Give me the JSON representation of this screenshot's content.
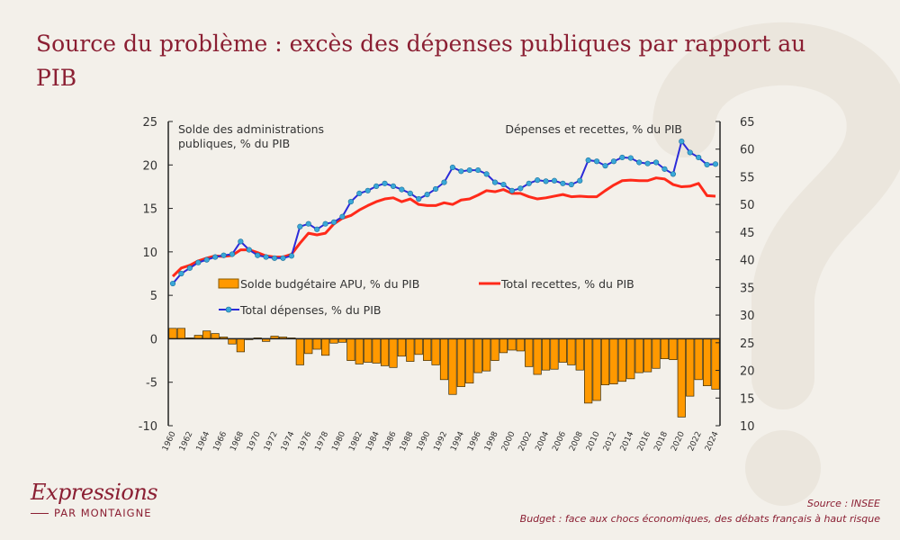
{
  "title": "Source du problème : excès des dépenses publiques par rapport au PIB",
  "logo": {
    "main": "Expressions",
    "sub": "PAR MONTAIGNE"
  },
  "footer": {
    "source": "Source : INSEE",
    "publication": "Budget : face aux chocs économiques, des débats français à haut risque"
  },
  "chart_data": {
    "type": "bar+line",
    "left_axis_label": "Solde des administrations publiques, % du PIB",
    "right_axis_label": "Dépenses et recettes, % du PIB",
    "ylim_left": [
      -10,
      25
    ],
    "yticks_left": [
      -10,
      -5,
      0,
      5,
      10,
      15,
      20,
      25
    ],
    "ylim_right": [
      10,
      65
    ],
    "yticks_right": [
      10,
      15,
      20,
      25,
      30,
      35,
      40,
      45,
      50,
      55,
      60,
      65
    ],
    "x": [
      1960,
      1961,
      1962,
      1963,
      1964,
      1965,
      1966,
      1967,
      1968,
      1969,
      1970,
      1971,
      1972,
      1973,
      1974,
      1975,
      1976,
      1977,
      1978,
      1979,
      1980,
      1981,
      1982,
      1983,
      1984,
      1985,
      1986,
      1987,
      1988,
      1989,
      1990,
      1991,
      1992,
      1993,
      1994,
      1995,
      1996,
      1997,
      1998,
      1999,
      2000,
      2001,
      2002,
      2003,
      2004,
      2005,
      2006,
      2007,
      2008,
      2009,
      2010,
      2011,
      2012,
      2013,
      2014,
      2015,
      2016,
      2017,
      2018,
      2019,
      2020,
      2021,
      2022,
      2023,
      2024
    ],
    "xticks": [
      "1960",
      "1962",
      "1964",
      "1966",
      "1968",
      "1970",
      "1972",
      "1974",
      "1976",
      "1978",
      "1980",
      "1982",
      "1984",
      "1986",
      "1988",
      "1990",
      "1992",
      "1994",
      "1996",
      "1998",
      "2000",
      "2002",
      "2004",
      "2006",
      "2008",
      "2010",
      "2012",
      "2014",
      "2016",
      "2018",
      "2020",
      "2022",
      "2024"
    ],
    "legend_placement": "center-left",
    "grid": false,
    "series": [
      {
        "name": "Solde budgétaire APU, % du PIB",
        "type": "bar",
        "axis": "left",
        "color": "#ff9900",
        "values": [
          1.2,
          1.2,
          0.1,
          0.4,
          0.9,
          0.6,
          0.2,
          -0.6,
          -1.5,
          -0.1,
          0.1,
          -0.3,
          0.3,
          0.2,
          0.1,
          -3.0,
          -1.7,
          -1.2,
          -1.9,
          -0.5,
          -0.4,
          -2.5,
          -2.9,
          -2.7,
          -2.8,
          -3.1,
          -3.3,
          -2.0,
          -2.6,
          -1.8,
          -2.5,
          -3.0,
          -4.7,
          -6.4,
          -5.5,
          -5.1,
          -3.9,
          -3.7,
          -2.5,
          -1.6,
          -1.3,
          -1.4,
          -3.2,
          -4.1,
          -3.6,
          -3.5,
          -2.7,
          -3.0,
          -3.6,
          -7.4,
          -7.1,
          -5.3,
          -5.2,
          -4.9,
          -4.6,
          -3.9,
          -3.8,
          -3.4,
          -2.3,
          -2.4,
          -9.0,
          -6.6,
          -4.7,
          -5.4,
          -5.8
        ]
      },
      {
        "name": "Total recettes, % du PIB",
        "type": "line",
        "axis": "right",
        "color": "#ff2a1a",
        "values": [
          37.0,
          38.5,
          39.0,
          39.8,
          40.3,
          40.7,
          40.6,
          40.8,
          41.8,
          41.8,
          41.3,
          40.7,
          40.5,
          40.5,
          41.0,
          43.0,
          44.8,
          44.5,
          44.8,
          46.5,
          47.5,
          48.0,
          49.0,
          49.8,
          50.5,
          51.0,
          51.2,
          50.5,
          51.0,
          50.0,
          49.8,
          49.8,
          50.3,
          50.0,
          50.8,
          51.0,
          51.7,
          52.5,
          52.3,
          52.7,
          52.0,
          52.0,
          51.4,
          51.0,
          51.2,
          51.5,
          51.8,
          51.4,
          51.5,
          51.4,
          51.4,
          52.5,
          53.5,
          54.3,
          54.4,
          54.3,
          54.3,
          54.8,
          54.6,
          53.6,
          53.2,
          53.3,
          53.8,
          51.6,
          51.5
        ]
      },
      {
        "name": "Total dépenses, % du PIB",
        "type": "line-markers",
        "axis": "right",
        "color": "#2b2bd9",
        "marker_color": "#3aa8d8",
        "values": [
          35.7,
          37.5,
          38.5,
          39.5,
          40.0,
          40.5,
          40.8,
          41.0,
          43.3,
          41.8,
          40.8,
          40.5,
          40.3,
          40.3,
          40.7,
          46.0,
          46.5,
          45.5,
          46.5,
          46.8,
          47.8,
          50.5,
          52.0,
          52.5,
          53.3,
          53.8,
          53.3,
          52.7,
          52.0,
          51.0,
          51.8,
          52.8,
          54.0,
          56.7,
          56.0,
          56.2,
          56.2,
          55.5,
          54.0,
          53.6,
          52.5,
          52.9,
          53.8,
          54.4,
          54.2,
          54.3,
          53.8,
          53.6,
          54.3,
          58.0,
          57.8,
          57.0,
          57.8,
          58.5,
          58.4,
          57.6,
          57.4,
          57.6,
          56.4,
          55.5,
          61.4,
          59.4,
          58.5,
          57.2,
          57.3
        ]
      }
    ]
  }
}
